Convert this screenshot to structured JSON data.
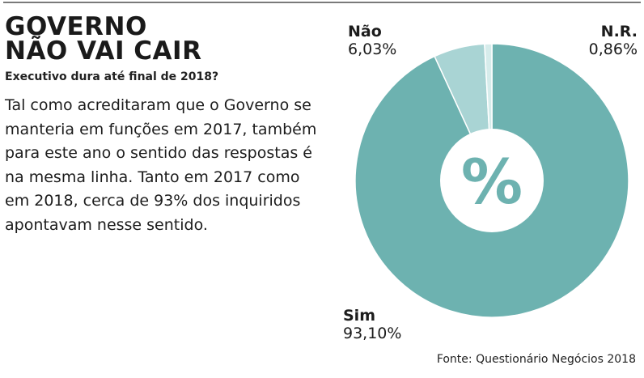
{
  "headline": {
    "line1": "GOVERNO",
    "line2": "NÃO VAI CAIR"
  },
  "subtitle": "Executivo dura até final de 2018?",
  "body_text": "Tal como acreditaram que o Governo se manteria em funções em 2017, também para este ano o sentido das respostas é na mesma linha. Tanto em 2017 como em 2018, cerca de 93% dos inquiridos apontavam nesse sentido.",
  "center_symbol": "%",
  "source": "Fonte: Questionário Negócios 2018",
  "colors": {
    "sim": "#6db2b0",
    "nao": "#a9d4d4",
    "nr": "#d6eceb",
    "background": "#ffffff"
  },
  "chart_data": {
    "type": "pie",
    "donut": true,
    "categories": [
      "Sim",
      "Não",
      "N.R."
    ],
    "values": [
      93.1,
      6.03,
      0.86
    ],
    "value_labels": [
      "93,10%",
      "6,03%",
      "0,86%"
    ],
    "unit": "%"
  }
}
